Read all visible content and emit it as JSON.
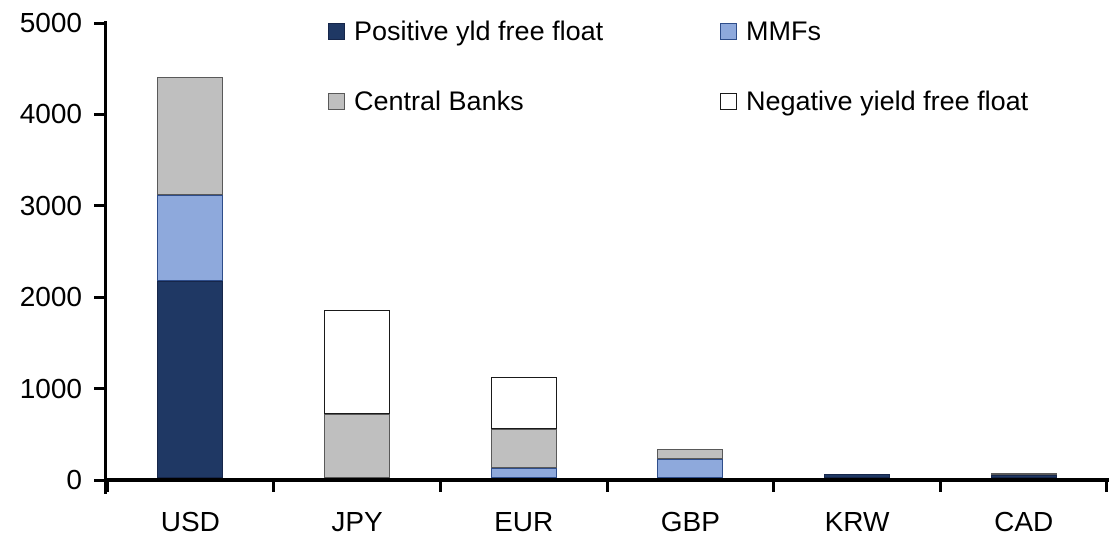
{
  "chart_data": {
    "type": "bar",
    "stacked": true,
    "title": "",
    "xlabel": "",
    "ylabel": "",
    "categories": [
      "USD",
      "JPY",
      "EUR",
      "GBP",
      "KRW",
      "CAD"
    ],
    "series": [
      {
        "name": "Positive yld free float",
        "color": "#1F3864",
        "border_color": "#16264a",
        "values": [
          2160,
          0,
          0,
          0,
          45,
          35
        ]
      },
      {
        "name": "MMFs",
        "color": "#8EA9DC",
        "border_color": "#2e4d8a",
        "values": [
          940,
          0,
          110,
          205,
          0,
          0
        ]
      },
      {
        "name": "Central Banks",
        "color": "#BFBFBF",
        "border_color": "#595959",
        "values": [
          1290,
          700,
          430,
          115,
          0,
          25
        ]
      },
      {
        "name": "Negative yield free float",
        "color": "#FFFFFF",
        "border_color": "#1a1a1a",
        "values": [
          0,
          1140,
          560,
          0,
          0,
          0
        ]
      }
    ],
    "totals": {
      "USD": 4390,
      "JPY": 1840,
      "EUR": 1100,
      "GBP": 320,
      "KRW": 45,
      "CAD": 60
    },
    "ylim": [
      0,
      5000
    ],
    "ytick_interval": 1000,
    "ytick_labels": [
      "0",
      "1000",
      "2000",
      "3000",
      "4000",
      "5000"
    ],
    "grid": false,
    "legend_position": "top-inside",
    "legend_rows": 2,
    "axis_color": "#000000",
    "text_color": "#000000",
    "background_color": "#FFFFFF"
  }
}
